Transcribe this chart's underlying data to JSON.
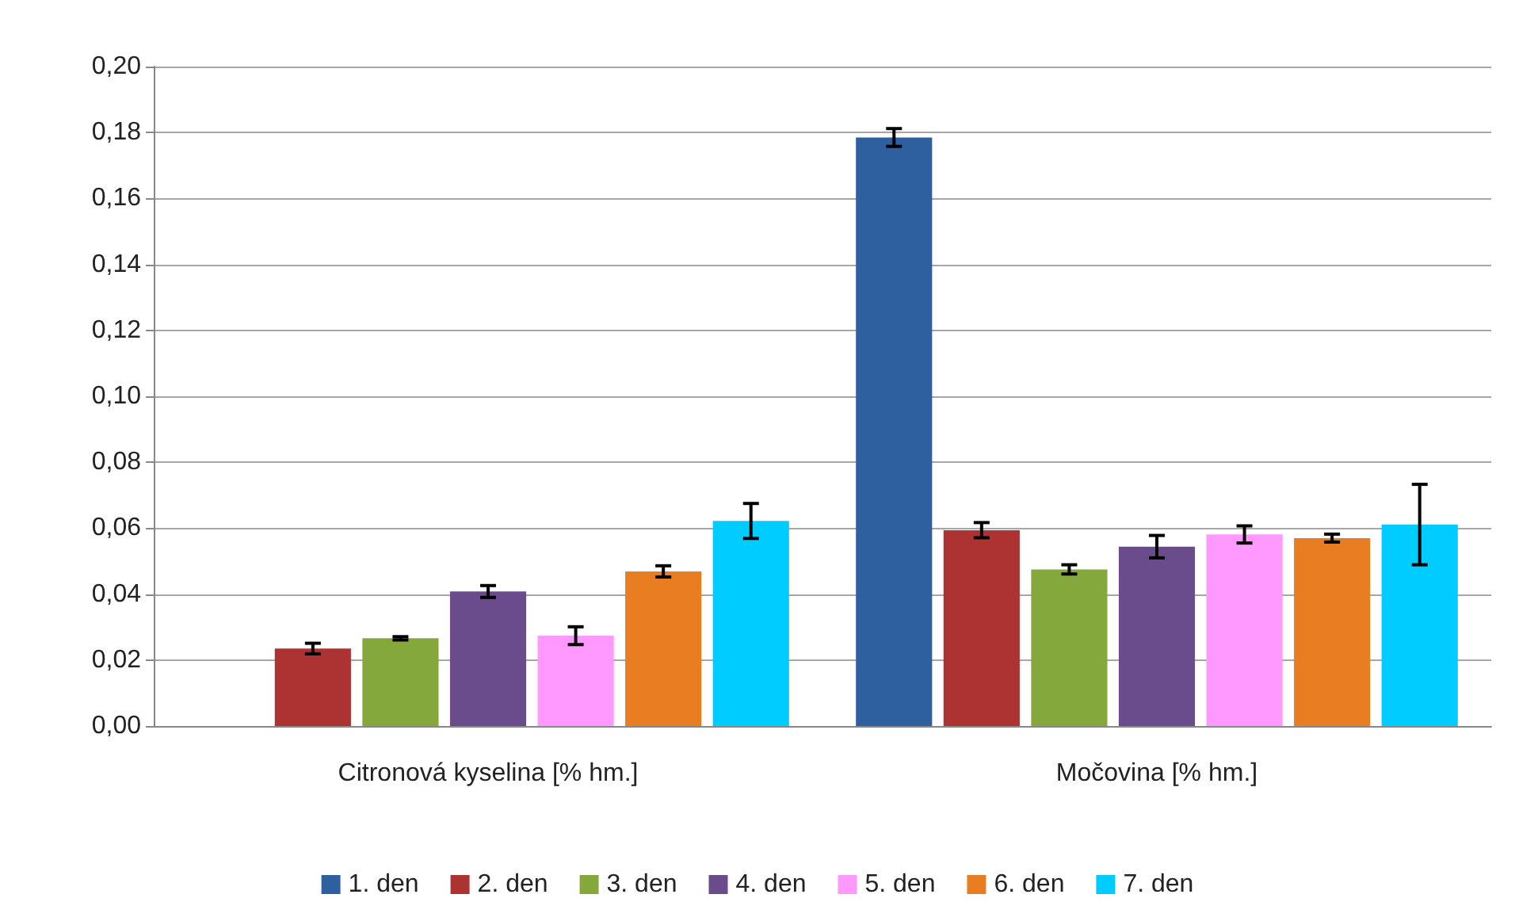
{
  "chart_data": {
    "type": "bar",
    "categories": [
      "Citronová kyselina [% hm.]",
      "Močovina [% hm.]"
    ],
    "series": [
      {
        "name": "1. den",
        "color": "#2e5f9e",
        "values": [
          null,
          0.1785
        ],
        "errors": [
          null,
          0.0027
        ]
      },
      {
        "name": "2. den",
        "color": "#ad3232",
        "values": [
          0.0235,
          0.0594
        ],
        "errors": [
          0.0016,
          0.0023
        ]
      },
      {
        "name": "3. den",
        "color": "#84a83c",
        "values": [
          0.0266,
          0.0475
        ],
        "errors": [
          0.0005,
          0.0014
        ]
      },
      {
        "name": "4. den",
        "color": "#6a4b8c",
        "values": [
          0.0408,
          0.0544
        ],
        "errors": [
          0.0018,
          0.0034
        ]
      },
      {
        "name": "5. den",
        "color": "#ff99ff",
        "values": [
          0.0274,
          0.0581
        ],
        "errors": [
          0.0027,
          0.0026
        ]
      },
      {
        "name": "6. den",
        "color": "#e87d22",
        "values": [
          0.0469,
          0.057
        ],
        "errors": [
          0.0017,
          0.0012
        ]
      },
      {
        "name": "7. den",
        "color": "#00ccff",
        "values": [
          0.0622,
          0.0611
        ],
        "errors": [
          0.0053,
          0.0122
        ]
      }
    ],
    "ylim": [
      0,
      0.2
    ],
    "yticks": [
      {
        "value": 0,
        "label": "0,00"
      },
      {
        "value": 0.02,
        "label": "0,02"
      },
      {
        "value": 0.04,
        "label": "0,04"
      },
      {
        "value": 0.06,
        "label": "0,06"
      },
      {
        "value": 0.08,
        "label": "0,08"
      },
      {
        "value": 0.1,
        "label": "0,10"
      },
      {
        "value": 0.12,
        "label": "0,12"
      },
      {
        "value": 0.14,
        "label": "0,14"
      },
      {
        "value": 0.16,
        "label": "0,16"
      },
      {
        "value": 0.18,
        "label": "0,18"
      },
      {
        "value": 0.2,
        "label": "0,20"
      }
    ],
    "grid": "y",
    "legend": "bottom"
  }
}
